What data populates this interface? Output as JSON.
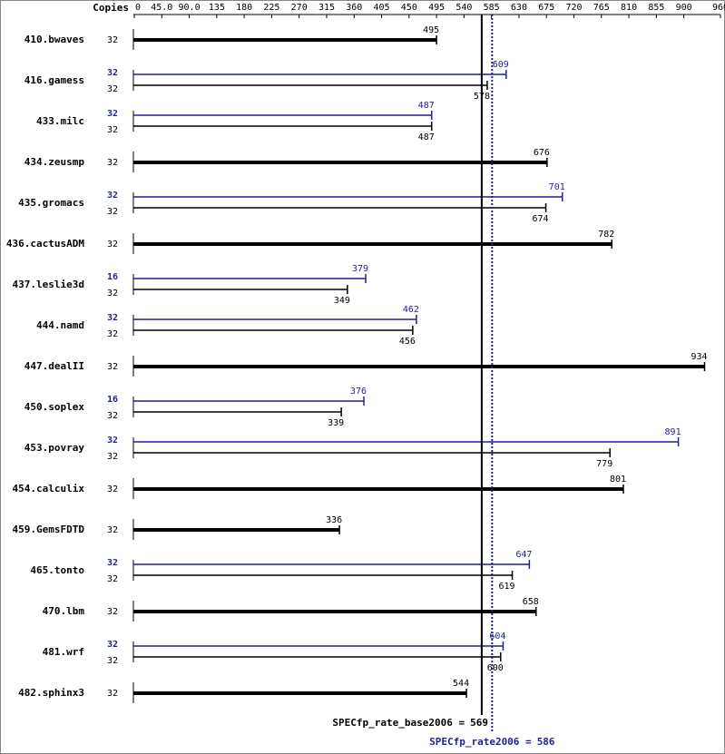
{
  "chart_data": {
    "type": "spec-rate",
    "copies_header": "Copies",
    "xlim": [
      0,
      960
    ],
    "xticks": [
      0,
      {
        "value": 45,
        "label": "45.0"
      },
      {
        "value": 90,
        "label": "90.0"
      },
      135,
      180,
      225,
      270,
      315,
      360,
      405,
      450,
      495,
      540,
      585,
      630,
      675,
      720,
      765,
      810,
      855,
      900,
      960
    ],
    "colors": {
      "base": "#000000",
      "peak": "#1f1f99"
    },
    "benchmarks": [
      {
        "name": "410.bwaves",
        "base_copies": 32,
        "base": 495
      },
      {
        "name": "416.gamess",
        "peak_copies": 32,
        "peak": 609,
        "base_copies": 32,
        "base": 578
      },
      {
        "name": "433.milc",
        "peak_copies": 32,
        "peak": 487,
        "base_copies": 32,
        "base": 487
      },
      {
        "name": "434.zeusmp",
        "base_copies": 32,
        "base": 676
      },
      {
        "name": "435.gromacs",
        "peak_copies": 32,
        "peak": 701,
        "base_copies": 32,
        "base": 674
      },
      {
        "name": "436.cactusADM",
        "base_copies": 32,
        "base": 782
      },
      {
        "name": "437.leslie3d",
        "peak_copies": 16,
        "peak": 379,
        "base_copies": 32,
        "base": 349
      },
      {
        "name": "444.namd",
        "peak_copies": 32,
        "peak": 462,
        "base_copies": 32,
        "base": 456
      },
      {
        "name": "447.dealII",
        "base_copies": 32,
        "base": 934
      },
      {
        "name": "450.soplex",
        "peak_copies": 16,
        "peak": 376,
        "base_copies": 32,
        "base": 339
      },
      {
        "name": "453.povray",
        "peak_copies": 32,
        "peak": 891,
        "base_copies": 32,
        "base": 779
      },
      {
        "name": "454.calculix",
        "base_copies": 32,
        "base": 801
      },
      {
        "name": "459.GemsFDTD",
        "base_copies": 32,
        "base": 336
      },
      {
        "name": "465.tonto",
        "peak_copies": 32,
        "peak": 647,
        "base_copies": 32,
        "base": 619
      },
      {
        "name": "470.lbm",
        "base_copies": 32,
        "base": 658
      },
      {
        "name": "481.wrf",
        "peak_copies": 32,
        "peak": 604,
        "base_copies": 32,
        "base": 600
      },
      {
        "name": "482.sphinx3",
        "base_copies": 32,
        "base": 544
      }
    ],
    "base_metric": {
      "label": "SPECfp_rate_base2006 =",
      "value": 569
    },
    "peak_metric": {
      "label": "SPECfp_rate2006 =",
      "value": 586
    }
  }
}
